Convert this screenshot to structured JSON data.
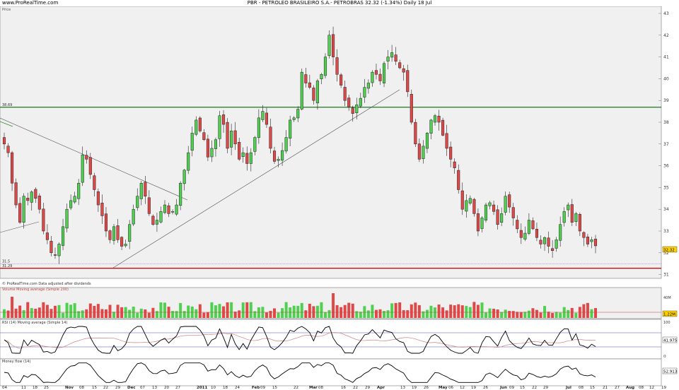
{
  "header": {
    "site": "www.ProRealTime.com",
    "title": "PBR - PETROLEO BRASILEIRO S.A.- PETROBRAS    32.32 (-1.34%)    Daily  18 Jul"
  },
  "price_panel": {
    "label": "Price",
    "resistance_label": "38.69",
    "support_labels": [
      "31.5",
      "31.29"
    ],
    "last_price_tag": "32.32",
    "footer_note": "© ProRealTime.com  Data adjusted after dividends",
    "y_ticks": [
      "43",
      "42",
      "41",
      "40",
      "39",
      "38",
      "37",
      "36",
      "35",
      "34",
      "33",
      "32",
      "31"
    ]
  },
  "volume_panel": {
    "label": "Volume  Moving average (Simple 200)",
    "axis_tick": "40M",
    "tag": "1.22M"
  },
  "rsi_panel": {
    "label": "RSI (14)   Moving average (Simple 14)",
    "axis_top": "100",
    "axis_bottom": "0",
    "tag": "41.975"
  },
  "mf_panel": {
    "label": "Money flow (14)",
    "tag": "52.913"
  },
  "x_axis": [
    {
      "t": "04",
      "x": 3
    },
    {
      "t": "11",
      "x": 30
    },
    {
      "t": "18",
      "x": 46
    },
    {
      "t": "25",
      "x": 62
    },
    {
      "t": "Nov",
      "x": 92
    },
    {
      "t": "08",
      "x": 112
    },
    {
      "t": "15",
      "x": 130
    },
    {
      "t": "22",
      "x": 146
    },
    {
      "t": "29",
      "x": 163
    },
    {
      "t": "Dec",
      "x": 180
    },
    {
      "t": "07",
      "x": 198
    },
    {
      "t": "13",
      "x": 215
    },
    {
      "t": "20",
      "x": 232
    },
    {
      "t": "27",
      "x": 248
    },
    {
      "t": "2011",
      "x": 278
    },
    {
      "t": "10",
      "x": 298
    },
    {
      "t": "18",
      "x": 315
    },
    {
      "t": "24",
      "x": 332
    },
    {
      "t": "Feb",
      "x": 356
    },
    {
      "t": "09",
      "x": 368
    },
    {
      "t": "15",
      "x": 385
    },
    {
      "t": "22",
      "x": 415
    },
    {
      "t": "Mar",
      "x": 437
    },
    {
      "t": "08",
      "x": 450
    },
    {
      "t": "16",
      "x": 482
    },
    {
      "t": "22",
      "x": 499
    },
    {
      "t": "29",
      "x": 516
    },
    {
      "t": "Apr",
      "x": 533
    },
    {
      "t": "13",
      "x": 566
    },
    {
      "t": "19",
      "x": 582
    },
    {
      "t": "26",
      "x": 599
    },
    {
      "t": "May",
      "x": 620
    },
    {
      "t": "06",
      "x": 634
    },
    {
      "t": "12",
      "x": 650
    },
    {
      "t": "19",
      "x": 666
    },
    {
      "t": "26",
      "x": 683
    },
    {
      "t": "Jun",
      "x": 707
    },
    {
      "t": "09",
      "x": 720
    },
    {
      "t": "15",
      "x": 735
    },
    {
      "t": "22",
      "x": 752
    },
    {
      "t": "29",
      "x": 768
    },
    {
      "t": "Jul",
      "x": 800
    },
    {
      "t": "08",
      "x": 818
    },
    {
      "t": "15",
      "x": 834
    },
    {
      "t": "21",
      "x": 852
    },
    {
      "t": "27",
      "x": 869
    },
    {
      "t": "Aug",
      "x": 885
    },
    {
      "t": "08",
      "x": 903
    },
    {
      "t": "12",
      "x": 918
    },
    {
      "t": "19",
      "x": 935
    }
  ],
  "chart_data": {
    "type": "candlestick",
    "title": "PBR - PETROLEO BRASILEIRO S.A.- PETROBRAS",
    "last": 32.32,
    "change_pct": -1.34,
    "ylim": [
      31,
      43.5
    ],
    "horizontal_lines": [
      38.69,
      31.5,
      31.29
    ],
    "closes": [
      37.0,
      36.6,
      35.2,
      34.2,
      33.4,
      34.6,
      34.4,
      34.8,
      34.5,
      34.0,
      33.0,
      32.6,
      32.0,
      31.9,
      32.4,
      33.2,
      34.0,
      34.4,
      34.6,
      35.2,
      36.5,
      36.3,
      35.6,
      34.9,
      34.2,
      33.7,
      33.0,
      32.6,
      33.2,
      32.6,
      32.3,
      32.4,
      33.3,
      34.0,
      34.6,
      35.2,
      34.6,
      33.8,
      33.3,
      33.5,
      33.9,
      34.2,
      33.8,
      33.9,
      34.2,
      35.2,
      35.8,
      36.6,
      37.5,
      38.1,
      37.6,
      37.2,
      36.4,
      36.8,
      37.2,
      38.3,
      37.9,
      36.8,
      37.6,
      37.0,
      36.3,
      36.6,
      36.1,
      36.6,
      37.3,
      38.2,
      38.5,
      37.9,
      36.8,
      36.2,
      36.3,
      36.7,
      37.3,
      38.1,
      38.2,
      38.6,
      40.3,
      39.8,
      39.6,
      39.0,
      39.9,
      40.2,
      41.0,
      42.0,
      41.0,
      40.2,
      39.7,
      39.0,
      38.7,
      38.4,
      38.8,
      39.1,
      39.6,
      39.8,
      40.3,
      40.2,
      39.9,
      40.7,
      41.0,
      41.2,
      40.8,
      40.5,
      40.3,
      39.4,
      38.0,
      37.0,
      36.3,
      36.9,
      37.5,
      38.1,
      38.3,
      38.0,
      37.4,
      36.8,
      36.3,
      35.9,
      34.9,
      34.0,
      34.4,
      34.5,
      33.8,
      33.0,
      33.6,
      34.2,
      34.3,
      33.9,
      33.3,
      33.8,
      34.6,
      34.1,
      33.6,
      33.1,
      32.7,
      32.9,
      33.5,
      33.1,
      32.7,
      32.4,
      32.7,
      32.3,
      32.1,
      32.6,
      33.3,
      33.9,
      34.2,
      33.4,
      33.8,
      33.0,
      32.7,
      32.4,
      32.6,
      32.32
    ],
    "volume_millions": [],
    "indicators": [
      "RSI (14)",
      "Money flow (14)"
    ]
  }
}
